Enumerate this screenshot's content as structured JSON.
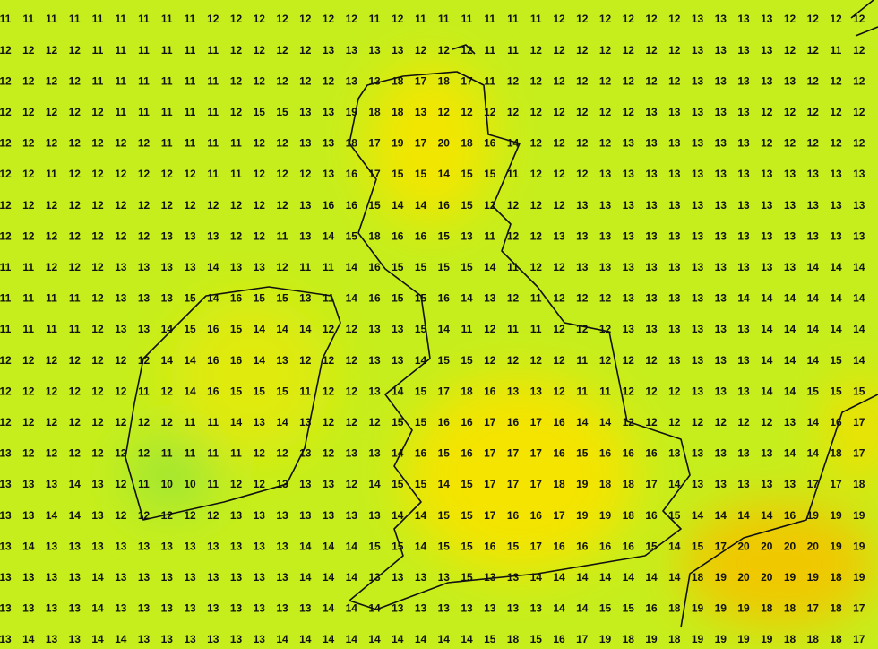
{
  "grid": {
    "rows": [
      [
        11,
        11,
        11,
        11,
        11,
        11,
        11,
        11,
        11,
        12,
        12,
        12,
        12,
        12,
        12,
        12,
        11,
        12,
        11,
        11,
        11,
        11,
        11,
        11,
        12,
        12,
        12,
        12,
        12,
        12,
        13,
        13,
        13,
        13,
        12,
        12,
        12,
        12
      ],
      [
        12,
        12,
        12,
        12,
        11,
        11,
        11,
        11,
        11,
        11,
        12,
        12,
        12,
        12,
        13,
        13,
        13,
        13,
        12,
        12,
        12,
        11,
        11,
        12,
        12,
        12,
        12,
        12,
        12,
        12,
        13,
        13,
        13,
        13,
        12,
        12,
        11,
        12
      ],
      [
        12,
        12,
        12,
        12,
        11,
        11,
        11,
        11,
        11,
        11,
        12,
        12,
        12,
        12,
        12,
        13,
        13,
        18,
        17,
        18,
        17,
        11,
        12,
        12,
        12,
        12,
        12,
        12,
        12,
        12,
        13,
        13,
        13,
        13,
        13,
        12,
        12,
        12
      ],
      [
        12,
        12,
        12,
        12,
        12,
        11,
        11,
        11,
        11,
        11,
        12,
        15,
        15,
        13,
        13,
        19,
        18,
        18,
        13,
        12,
        12,
        12,
        12,
        12,
        12,
        12,
        12,
        12,
        13,
        13,
        13,
        13,
        13,
        12,
        12,
        12,
        12,
        12
      ],
      [
        12,
        12,
        12,
        12,
        12,
        12,
        12,
        11,
        11,
        11,
        11,
        12,
        12,
        13,
        13,
        18,
        17,
        19,
        17,
        20,
        18,
        16,
        14,
        12,
        12,
        12,
        12,
        13,
        13,
        13,
        13,
        13,
        13,
        12,
        12,
        12,
        12,
        12
      ],
      [
        12,
        12,
        11,
        12,
        12,
        12,
        12,
        12,
        12,
        11,
        11,
        12,
        12,
        12,
        13,
        16,
        17,
        15,
        15,
        14,
        15,
        15,
        11,
        12,
        12,
        12,
        13,
        13,
        13,
        13,
        13,
        13,
        13,
        13,
        13,
        13,
        13,
        13
      ],
      [
        12,
        12,
        12,
        12,
        12,
        12,
        12,
        12,
        12,
        12,
        12,
        12,
        12,
        13,
        16,
        16,
        15,
        14,
        14,
        16,
        15,
        12,
        12,
        12,
        12,
        13,
        13,
        13,
        13,
        13,
        13,
        13,
        13,
        13,
        13,
        13,
        13,
        13
      ],
      [
        12,
        12,
        12,
        12,
        12,
        12,
        12,
        13,
        13,
        13,
        12,
        12,
        11,
        13,
        14,
        15,
        18,
        16,
        16,
        15,
        13,
        11,
        12,
        12,
        13,
        13,
        13,
        13,
        13,
        13,
        13,
        13,
        13,
        13,
        13,
        13,
        13,
        13
      ],
      [
        11,
        11,
        12,
        12,
        12,
        13,
        13,
        13,
        13,
        14,
        13,
        13,
        12,
        11,
        11,
        14,
        16,
        15,
        15,
        15,
        15,
        14,
        11,
        12,
        12,
        13,
        13,
        13,
        13,
        13,
        13,
        13,
        13,
        13,
        13,
        14,
        14,
        14
      ],
      [
        11,
        11,
        11,
        11,
        12,
        13,
        13,
        13,
        15,
        14,
        16,
        15,
        15,
        13,
        11,
        14,
        16,
        15,
        15,
        16,
        14,
        13,
        12,
        11,
        12,
        12,
        12,
        13,
        13,
        13,
        13,
        13,
        14,
        14,
        14,
        14,
        14,
        14
      ],
      [
        11,
        11,
        11,
        11,
        12,
        13,
        13,
        14,
        15,
        16,
        15,
        14,
        14,
        14,
        12,
        12,
        13,
        13,
        15,
        14,
        11,
        12,
        11,
        11,
        12,
        12,
        12,
        13,
        13,
        13,
        13,
        13,
        13,
        14,
        14,
        14,
        14,
        14
      ],
      [
        12,
        12,
        12,
        12,
        12,
        12,
        12,
        14,
        14,
        16,
        16,
        14,
        13,
        12,
        12,
        12,
        13,
        13,
        14,
        15,
        15,
        12,
        12,
        12,
        12,
        11,
        12,
        12,
        12,
        13,
        13,
        13,
        13,
        14,
        14,
        14,
        15,
        14
      ],
      [
        12,
        12,
        12,
        12,
        12,
        12,
        11,
        12,
        14,
        16,
        15,
        15,
        15,
        11,
        12,
        12,
        13,
        14,
        15,
        17,
        18,
        16,
        13,
        13,
        12,
        11,
        11,
        12,
        12,
        12,
        13,
        13,
        13,
        14,
        14,
        15,
        15,
        15
      ],
      [
        12,
        12,
        12,
        12,
        12,
        12,
        12,
        12,
        11,
        11,
        14,
        13,
        14,
        13,
        12,
        12,
        12,
        15,
        15,
        16,
        16,
        17,
        16,
        17,
        16,
        14,
        14,
        12,
        12,
        12,
        12,
        12,
        12,
        12,
        13,
        14,
        16,
        17
      ],
      [
        13,
        12,
        12,
        12,
        12,
        12,
        12,
        11,
        11,
        11,
        11,
        12,
        12,
        13,
        12,
        13,
        13,
        14,
        16,
        15,
        16,
        17,
        17,
        17,
        16,
        15,
        16,
        16,
        16,
        13,
        13,
        13,
        13,
        13,
        14,
        14,
        18,
        17
      ],
      [
        13,
        13,
        13,
        14,
        13,
        12,
        11,
        10,
        10,
        11,
        12,
        12,
        13,
        13,
        13,
        12,
        14,
        15,
        15,
        14,
        15,
        17,
        17,
        17,
        18,
        19,
        18,
        18,
        17,
        14,
        13,
        13,
        13,
        13,
        13,
        17,
        17,
        18
      ],
      [
        13,
        13,
        14,
        14,
        13,
        12,
        12,
        12,
        12,
        12,
        13,
        13,
        13,
        13,
        13,
        13,
        13,
        14,
        14,
        15,
        15,
        17,
        16,
        16,
        17,
        19,
        19,
        18,
        16,
        15,
        14,
        14,
        14,
        14,
        16,
        19,
        19,
        19
      ],
      [
        13,
        14,
        13,
        13,
        13,
        13,
        13,
        13,
        13,
        13,
        13,
        13,
        13,
        14,
        14,
        14,
        15,
        15,
        14,
        15,
        15,
        16,
        15,
        17,
        16,
        16,
        16,
        16,
        15,
        14,
        15,
        17,
        20,
        20,
        20,
        20,
        19,
        19
      ],
      [
        13,
        13,
        13,
        13,
        14,
        13,
        13,
        13,
        13,
        13,
        13,
        13,
        13,
        14,
        14,
        14,
        13,
        13,
        13,
        13,
        15,
        13,
        13,
        14,
        14,
        14,
        14,
        14,
        14,
        14,
        18,
        19,
        20,
        20,
        19,
        19,
        18,
        19
      ],
      [
        13,
        13,
        13,
        13,
        14,
        13,
        13,
        13,
        13,
        13,
        13,
        13,
        13,
        13,
        14,
        14,
        14,
        13,
        13,
        13,
        13,
        13,
        13,
        13,
        14,
        14,
        15,
        15,
        16,
        18,
        19,
        19,
        19,
        18,
        18,
        17,
        18,
        17
      ],
      [
        13,
        14,
        13,
        13,
        14,
        14,
        13,
        13,
        13,
        13,
        13,
        13,
        14,
        14,
        14,
        14,
        14,
        14,
        14,
        14,
        14,
        15,
        18,
        15,
        16,
        17,
        19,
        18,
        19,
        18,
        19,
        19,
        19,
        19,
        18,
        18,
        18,
        17
      ]
    ]
  }
}
